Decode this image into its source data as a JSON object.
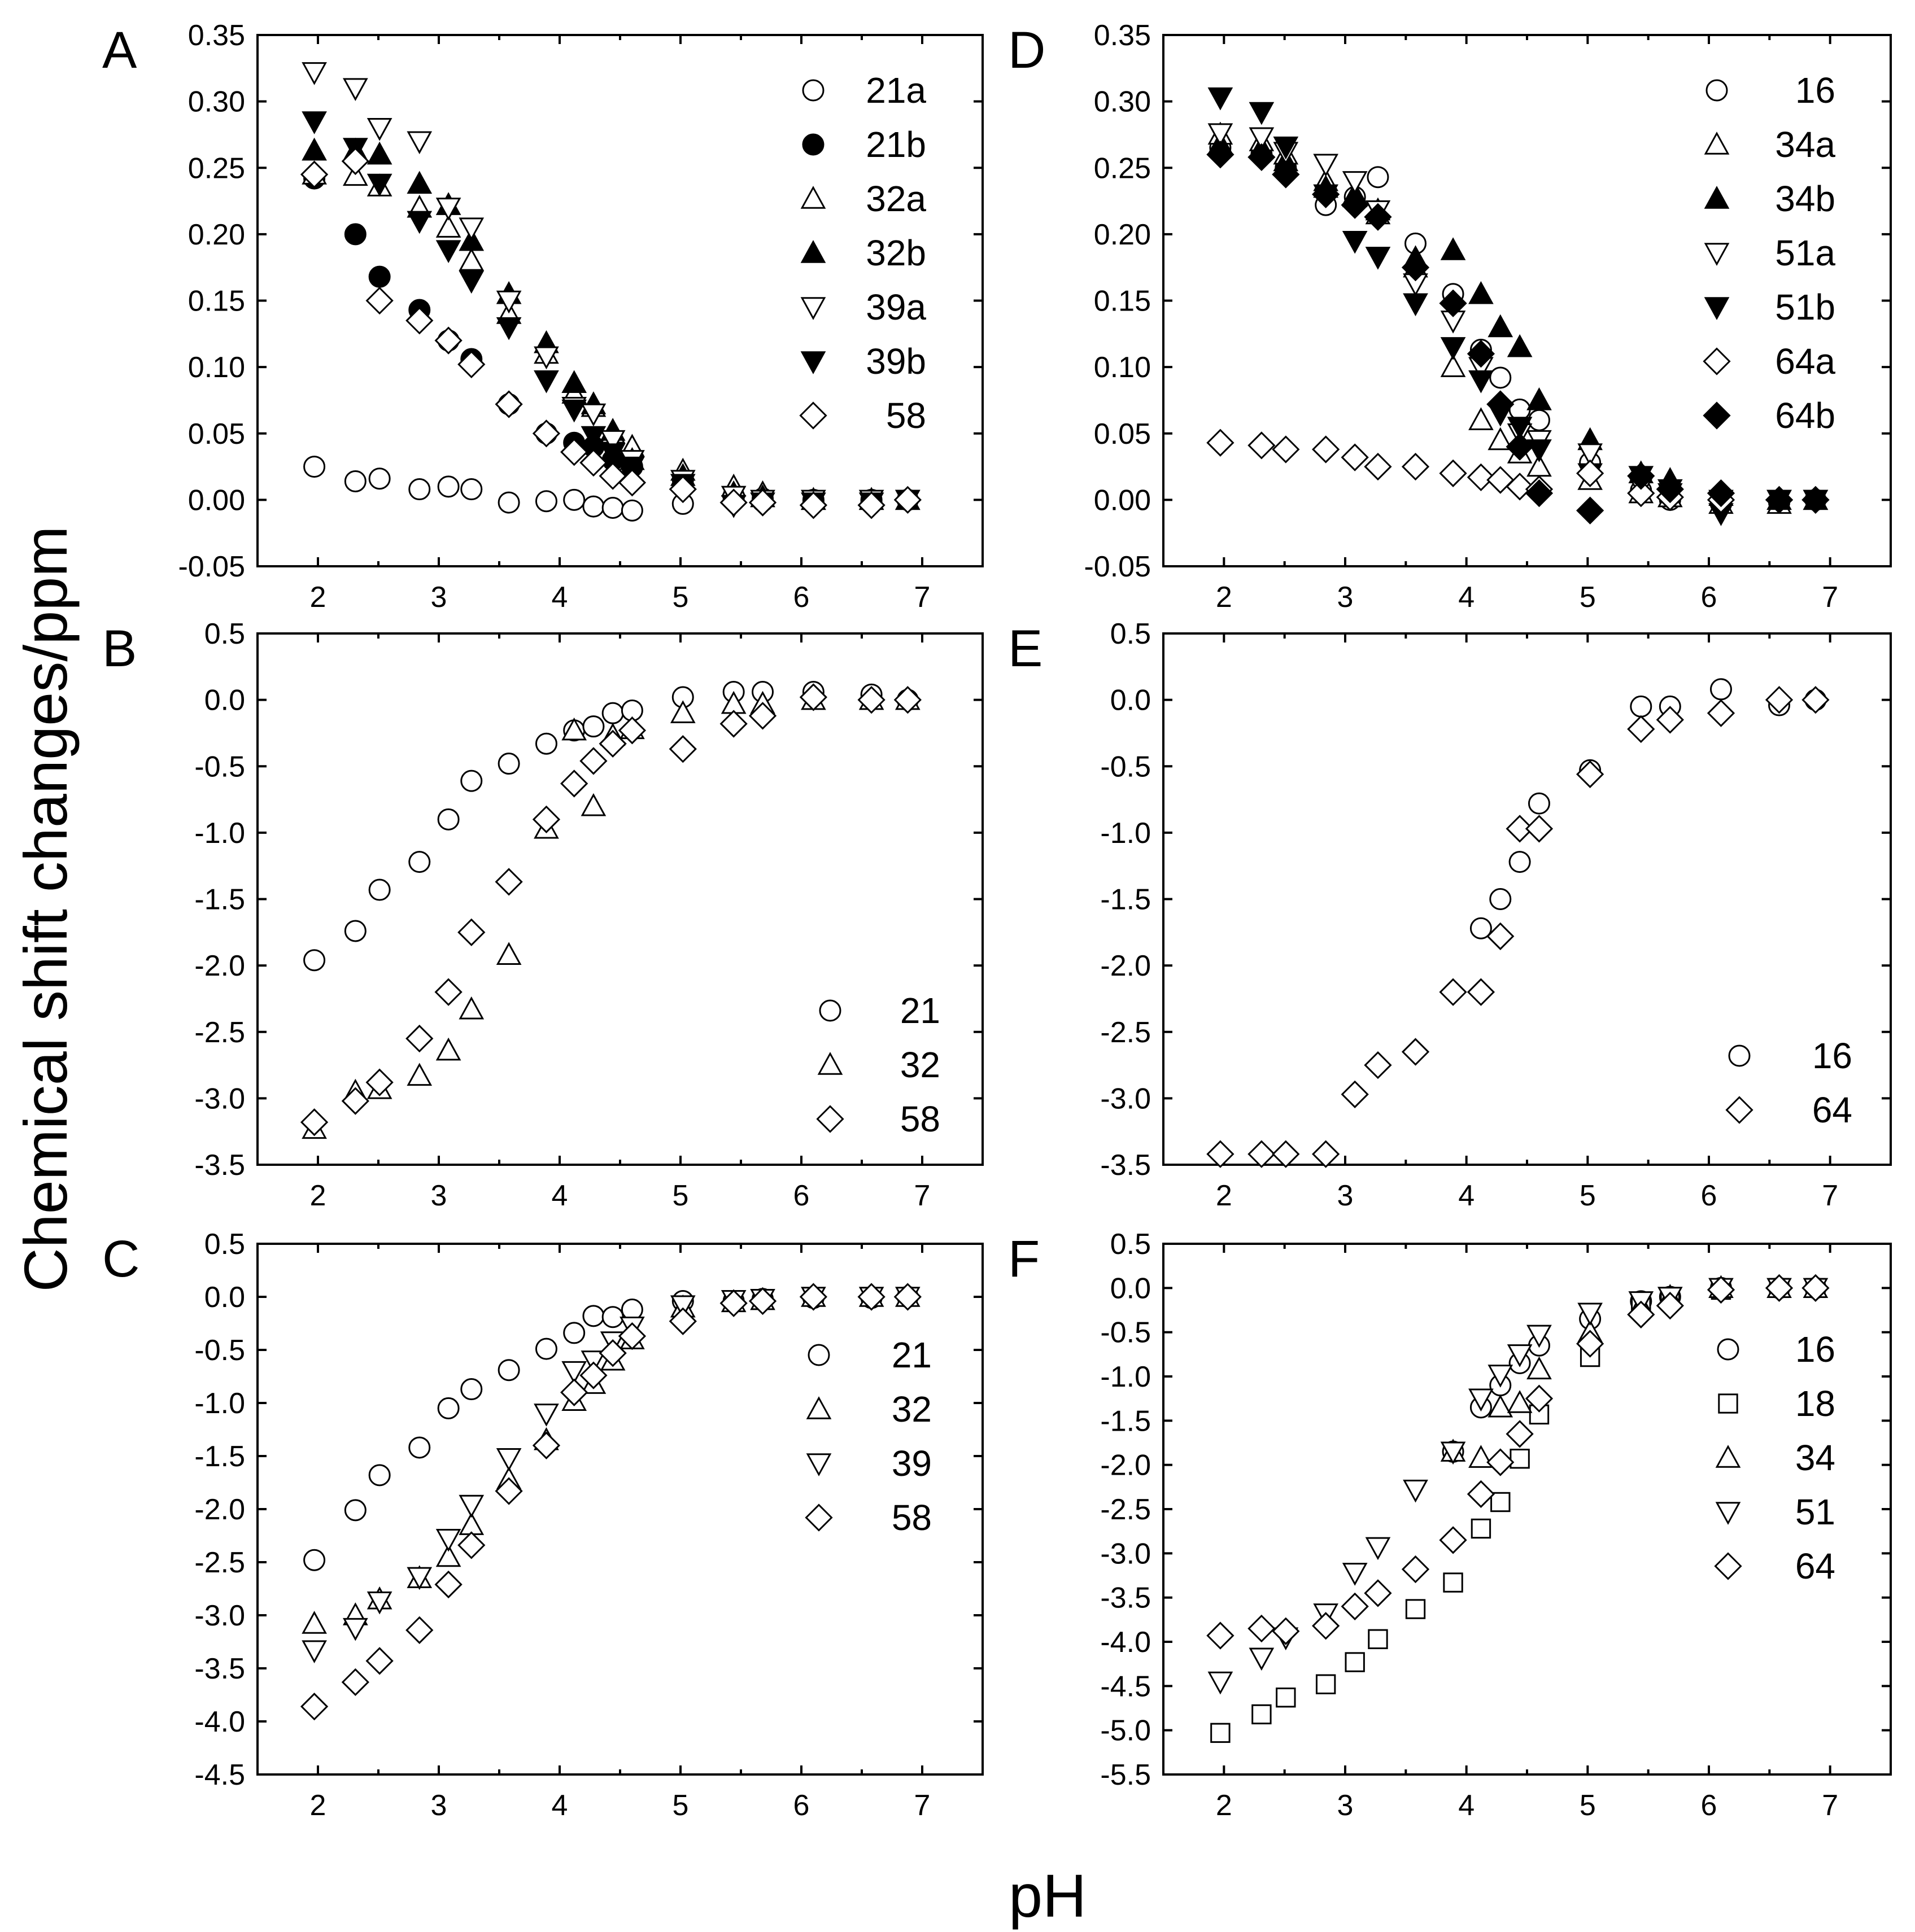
{
  "figure": {
    "ylabel": "Chemical shift changes/ppm",
    "xlabel": "pH"
  },
  "chart_data": [
    {
      "type": "scatter",
      "panel": "A",
      "xlim": [
        1.5,
        7.5
      ],
      "ylim": [
        -0.05,
        0.35
      ],
      "xticks": [
        "2",
        "3",
        "4",
        "5",
        "6",
        "7"
      ],
      "yticks": [
        "-0.05",
        "0.00",
        "0.05",
        "0.10",
        "0.15",
        "0.20",
        "0.25",
        "0.30",
        "0.35"
      ],
      "x": [
        1.97,
        2.31,
        2.51,
        2.84,
        3.08,
        3.27,
        3.58,
        3.89,
        4.12,
        4.28,
        4.44,
        4.6,
        5.02,
        5.44,
        5.68,
        6.1,
        6.58,
        6.88
      ],
      "series": [
        {
          "name": "21a",
          "marker": "circle",
          "fill": "open",
          "values": [
            0.025,
            0.014,
            0.016,
            0.008,
            0.01,
            0.008,
            -0.002,
            -0.001,
            0.0,
            -0.005,
            -0.006,
            -0.008,
            -0.003,
            0.0,
            -0.001,
            -0.002,
            -0.002,
            0.0
          ]
        },
        {
          "name": "21b",
          "marker": "circle",
          "fill": "filled",
          "values": [
            0.242,
            0.2,
            0.168,
            0.143,
            0.12,
            0.106,
            0.072,
            0.05,
            0.043,
            0.04,
            0.03,
            0.025,
            0.015,
            0.003,
            0.001,
            0.0,
            0.0,
            0.0
          ]
        },
        {
          "name": "32a",
          "marker": "triangle-up",
          "fill": "open",
          "values": [
            0.245,
            0.244,
            0.236,
            0.22,
            0.205,
            0.18,
            0.14,
            0.11,
            0.08,
            0.07,
            0.05,
            0.04,
            0.022,
            0.01,
            0.005,
            0.0,
            0.0,
            0.0
          ]
        },
        {
          "name": "32b",
          "marker": "triangle-up",
          "fill": "filled",
          "values": [
            0.263,
            0.263,
            0.26,
            0.238,
            0.222,
            0.195,
            0.155,
            0.118,
            0.088,
            0.072,
            0.052,
            0.03,
            0.018,
            0.005,
            0.002,
            0.0,
            0.0,
            0.0
          ]
        },
        {
          "name": "39a",
          "marker": "triangle-down",
          "fill": "open",
          "values": [
            0.322,
            0.31,
            0.28,
            0.27,
            0.22,
            0.205,
            0.15,
            0.108,
            0.07,
            0.065,
            0.045,
            0.03,
            0.015,
            0.003,
            0.0,
            0.0,
            0.0,
            0.0
          ]
        },
        {
          "name": "39b",
          "marker": "triangle-down",
          "fill": "filled",
          "values": [
            0.285,
            0.265,
            0.238,
            0.21,
            0.188,
            0.165,
            0.13,
            0.09,
            0.068,
            0.048,
            0.035,
            0.025,
            0.012,
            -0.004,
            -0.002,
            -0.002,
            -0.002,
            0.0
          ]
        },
        {
          "name": "58",
          "marker": "diamond",
          "fill": "open",
          "values": [
            0.245,
            0.255,
            0.15,
            0.135,
            0.12,
            0.102,
            0.072,
            0.05,
            0.036,
            0.028,
            0.018,
            0.013,
            0.008,
            -0.002,
            -0.002,
            -0.004,
            -0.004,
            0.0
          ]
        }
      ]
    },
    {
      "type": "scatter",
      "panel": "B",
      "xlim": [
        1.5,
        7.5
      ],
      "ylim": [
        -3.5,
        0.5
      ],
      "xticks": [
        "2",
        "3",
        "4",
        "5",
        "6",
        "7"
      ],
      "yticks": [
        "-3.5",
        "-3.0",
        "-2.5",
        "-2.0",
        "-1.5",
        "-1.0",
        "-0.5",
        "0.0",
        "0.5"
      ],
      "x": [
        1.97,
        2.31,
        2.51,
        2.84,
        3.08,
        3.27,
        3.58,
        3.89,
        4.12,
        4.28,
        4.44,
        4.6,
        5.02,
        5.44,
        5.68,
        6.1,
        6.58,
        6.88
      ],
      "series": [
        {
          "name": "21",
          "marker": "circle",
          "fill": "open",
          "values": [
            -1.96,
            -1.74,
            -1.43,
            -1.22,
            -0.9,
            -0.61,
            -0.48,
            -0.33,
            -0.23,
            -0.2,
            -0.1,
            -0.08,
            0.02,
            0.06,
            0.06,
            0.06,
            0.04,
            0.0
          ]
        },
        {
          "name": "32",
          "marker": "triangle-up",
          "fill": "open",
          "values": [
            -3.23,
            -2.95,
            -2.93,
            -2.83,
            -2.64,
            -2.33,
            -1.92,
            -0.97,
            -0.23,
            -0.8,
            -0.27,
            -0.22,
            -0.1,
            -0.03,
            -0.03,
            0.0,
            0.0,
            0.0
          ]
        },
        {
          "name": "58",
          "marker": "diamond",
          "fill": "open",
          "values": [
            -3.18,
            -3.02,
            -2.88,
            -2.55,
            -2.2,
            -1.75,
            -1.37,
            -0.9,
            -0.63,
            -0.46,
            -0.33,
            -0.23,
            -0.37,
            -0.18,
            -0.12,
            0.02,
            0.0,
            0.0
          ]
        }
      ]
    },
    {
      "type": "scatter",
      "panel": "C",
      "xlim": [
        1.5,
        7.5
      ],
      "ylim": [
        -4.5,
        0.5
      ],
      "xticks": [
        "2",
        "3",
        "4",
        "5",
        "6",
        "7"
      ],
      "yticks": [
        "-4.5",
        "-4.0",
        "-3.5",
        "-3.0",
        "-2.5",
        "-2.0",
        "-1.5",
        "-1.0",
        "-0.5",
        "0.0",
        "0.5"
      ],
      "x": [
        1.97,
        2.31,
        2.51,
        2.84,
        3.08,
        3.27,
        3.58,
        3.89,
        4.12,
        4.28,
        4.44,
        4.6,
        5.02,
        5.44,
        5.68,
        6.1,
        6.58,
        6.88
      ],
      "series": [
        {
          "name": "21",
          "marker": "circle",
          "fill": "open",
          "values": [
            -2.48,
            -2.01,
            -1.68,
            -1.42,
            -1.05,
            -0.87,
            -0.69,
            -0.49,
            -0.34,
            -0.18,
            -0.19,
            -0.12,
            -0.04,
            -0.04,
            -0.02,
            -0.01,
            -0.01,
            0.0
          ]
        },
        {
          "name": "32",
          "marker": "triangle-up",
          "fill": "open",
          "values": [
            -3.08,
            -3.0,
            -2.85,
            -2.65,
            -2.45,
            -2.15,
            -1.72,
            -1.35,
            -0.98,
            -0.82,
            -0.6,
            -0.4,
            -0.1,
            -0.05,
            -0.03,
            0.0,
            0.0,
            0.0
          ]
        },
        {
          "name": "39",
          "marker": "triangle-down",
          "fill": "open",
          "values": [
            -3.33,
            -3.12,
            -2.87,
            -2.64,
            -2.28,
            -1.96,
            -1.52,
            -1.1,
            -0.7,
            -0.6,
            -0.42,
            -0.28,
            -0.08,
            -0.03,
            -0.02,
            0.0,
            0.0,
            0.0
          ]
        },
        {
          "name": "58",
          "marker": "diamond",
          "fill": "open",
          "values": [
            -3.86,
            -3.63,
            -3.43,
            -3.14,
            -2.71,
            -2.34,
            -1.83,
            -1.4,
            -0.9,
            -0.74,
            -0.53,
            -0.37,
            -0.23,
            -0.06,
            -0.04,
            0.0,
            0.0,
            0.0
          ]
        }
      ]
    },
    {
      "type": "scatter",
      "panel": "D",
      "xlim": [
        1.5,
        7.5
      ],
      "ylim": [
        -0.05,
        0.35
      ],
      "xticks": [
        "2",
        "3",
        "4",
        "5",
        "6",
        "7"
      ],
      "yticks": [
        "-0.05",
        "0.00",
        "0.05",
        "0.10",
        "0.15",
        "0.20",
        "0.25",
        "0.30",
        "0.35"
      ],
      "x": [
        1.97,
        2.31,
        2.51,
        2.84,
        3.08,
        3.27,
        3.58,
        3.89,
        4.12,
        4.28,
        4.44,
        4.6,
        5.02,
        5.44,
        5.68,
        6.1,
        6.58,
        6.88
      ],
      "series": [
        {
          "name": "16",
          "marker": "circle",
          "fill": "open",
          "values": [
            0.265,
            0.26,
            0.25,
            0.222,
            0.228,
            0.243,
            0.193,
            0.155,
            0.113,
            0.092,
            0.068,
            0.06,
            0.028,
            0.007,
            0.0,
            -0.003,
            -0.002,
            0.0
          ]
        },
        {
          "name": "34a",
          "marker": "triangle-up",
          "fill": "open",
          "values": [
            0.275,
            0.27,
            0.26,
            0.24,
            0.23,
            0.215,
            0.175,
            0.1,
            0.06,
            0.045,
            0.035,
            0.025,
            0.015,
            0.005,
            0.002,
            -0.003,
            -0.003,
            0.0
          ]
        },
        {
          "name": "34b",
          "marker": "triangle-up",
          "fill": "filled",
          "values": [
            0.268,
            0.265,
            0.255,
            0.235,
            0.228,
            0.218,
            0.182,
            0.188,
            0.155,
            0.13,
            0.115,
            0.075,
            0.045,
            0.02,
            0.015,
            0.003,
            0.0,
            0.0
          ]
        },
        {
          "name": "51a",
          "marker": "triangle-down",
          "fill": "open",
          "values": [
            0.276,
            0.273,
            0.262,
            0.253,
            0.24,
            0.218,
            0.163,
            0.135,
            0.1,
            0.065,
            0.05,
            0.045,
            0.035,
            0.01,
            0.005,
            0.0,
            0.0,
            0.0
          ]
        },
        {
          "name": "51b",
          "marker": "triangle-down",
          "fill": "filled",
          "values": [
            0.303,
            0.292,
            0.266,
            0.23,
            0.195,
            0.183,
            0.148,
            0.115,
            0.09,
            0.065,
            0.055,
            0.038,
            0.02,
            0.018,
            0.008,
            -0.01,
            0.0,
            0.0
          ]
        },
        {
          "name": "64a",
          "marker": "diamond",
          "fill": "open",
          "values": [
            0.043,
            0.041,
            0.038,
            0.038,
            0.032,
            0.025,
            0.025,
            0.02,
            0.017,
            0.015,
            0.01,
            0.008,
            0.02,
            0.005,
            0.002,
            0.0,
            0.0,
            0.0
          ]
        },
        {
          "name": "64b",
          "marker": "diamond",
          "fill": "filled",
          "values": [
            0.26,
            0.258,
            0.245,
            0.23,
            0.222,
            0.213,
            0.175,
            0.148,
            0.11,
            0.072,
            0.04,
            0.005,
            -0.008,
            0.018,
            0.008,
            0.005,
            0.0,
            0.0
          ]
        }
      ]
    },
    {
      "type": "scatter",
      "panel": "E",
      "xlim": [
        1.5,
        7.5
      ],
      "ylim": [
        -3.5,
        0.5
      ],
      "xticks": [
        "2",
        "3",
        "4",
        "5",
        "6",
        "7"
      ],
      "yticks": [
        "-3.5",
        "-3.0",
        "-2.5",
        "-2.0",
        "-1.5",
        "-1.0",
        "-0.5",
        "0.0",
        "0.5"
      ],
      "x": [
        1.97,
        2.31,
        2.51,
        2.84,
        3.08,
        3.27,
        3.58,
        3.89,
        4.12,
        4.28,
        4.44,
        4.6,
        5.02,
        5.44,
        5.68,
        6.1,
        6.58,
        6.88
      ],
      "series": [
        {
          "name": "16",
          "marker": "circle",
          "fill": "open",
          "values": [
            null,
            null,
            null,
            null,
            null,
            null,
            null,
            null,
            -1.72,
            -1.5,
            -1.22,
            -0.78,
            -0.53,
            -0.05,
            -0.05,
            0.08,
            -0.04,
            0.0
          ]
        },
        {
          "name": "64",
          "marker": "diamond",
          "fill": "open",
          "values": [
            -3.42,
            -3.42,
            -3.42,
            -3.42,
            -2.97,
            -2.75,
            -2.65,
            -2.2,
            -2.2,
            -1.78,
            -0.97,
            -0.97,
            -0.56,
            -0.22,
            -0.15,
            -0.1,
            0.0,
            0.0
          ]
        }
      ]
    },
    {
      "type": "scatter",
      "panel": "F",
      "xlim": [
        1.5,
        7.5
      ],
      "ylim": [
        -5.5,
        0.5
      ],
      "xticks": [
        "2",
        "3",
        "4",
        "5",
        "6",
        "7"
      ],
      "yticks": [
        "-5.5",
        "-5.0",
        "-4.5",
        "-4.0",
        "-3.5",
        "-3.0",
        "-2.5",
        "-2.0",
        "-1.5",
        "-1.0",
        "-0.5",
        "0.0",
        "0.5"
      ],
      "x": [
        1.97,
        2.31,
        2.51,
        2.84,
        3.08,
        3.27,
        3.58,
        3.89,
        4.12,
        4.28,
        4.44,
        4.6,
        5.02,
        5.44,
        5.68,
        6.1,
        6.58,
        6.88
      ],
      "series": [
        {
          "name": "16",
          "marker": "circle",
          "fill": "open",
          "values": [
            null,
            null,
            null,
            null,
            null,
            null,
            null,
            -1.85,
            -1.35,
            -1.1,
            -0.85,
            -0.65,
            -0.35,
            -0.15,
            -0.1,
            0.0,
            0.0,
            0.0
          ]
        },
        {
          "name": "18",
          "marker": "square",
          "fill": "open",
          "values": [
            -5.03,
            -4.82,
            -4.63,
            -4.48,
            -4.23,
            -3.97,
            -3.63,
            -3.33,
            -2.72,
            -2.42,
            -1.93,
            -1.43,
            -0.78,
            -0.2,
            -0.12,
            -0.02,
            0.0,
            0.0
          ]
        },
        {
          "name": "34",
          "marker": "triangle-up",
          "fill": "open",
          "values": [
            null,
            null,
            null,
            null,
            null,
            null,
            null,
            -1.85,
            -1.92,
            -1.35,
            -1.3,
            -0.92,
            -0.5,
            -0.2,
            -0.1,
            0.0,
            0.0,
            0.0
          ]
        },
        {
          "name": "51",
          "marker": "triangle-down",
          "fill": "open",
          "values": [
            -4.45,
            -4.18,
            -3.95,
            -3.68,
            -3.22,
            -2.93,
            -2.28,
            -1.85,
            -1.25,
            -0.98,
            -0.75,
            -0.53,
            -0.28,
            -0.15,
            -0.1,
            0.0,
            0.0,
            0.0
          ]
        },
        {
          "name": "64",
          "marker": "diamond",
          "fill": "open",
          "values": [
            -3.93,
            -3.85,
            -3.88,
            -3.82,
            -3.6,
            -3.45,
            -3.18,
            -2.85,
            -2.33,
            -1.97,
            -1.65,
            -1.25,
            -0.63,
            -0.3,
            -0.2,
            -0.02,
            0.0,
            0.0
          ]
        }
      ]
    }
  ]
}
